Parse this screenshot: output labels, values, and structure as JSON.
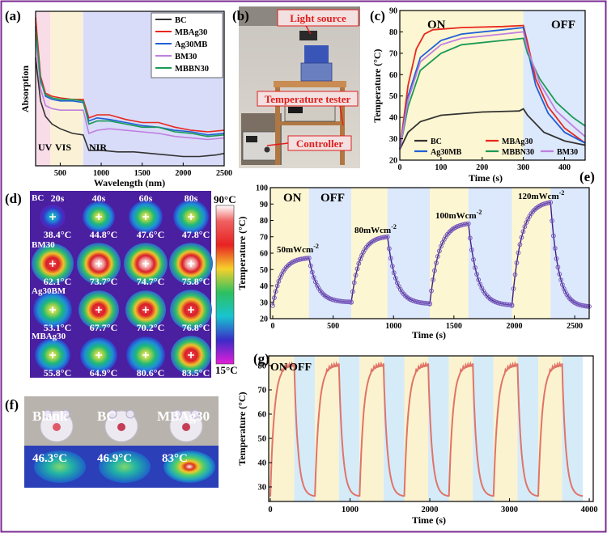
{
  "colors": {
    "frame": "#7a2a92",
    "bc": "#333333",
    "mbag": "#e8281e",
    "ag30mb": "#1f5fd6",
    "mbbn": "#1a9a55",
    "bm30": "#bf7fe0",
    "on_band": "#fdf6d2",
    "off_band": "#dce8fb",
    "uv_band": "#f8dce8",
    "vis_band": "#fbf1d6",
    "nir_band": "#d8dcf8",
    "g_on": "#fbf3cf",
    "g_off": "#d5ebf8",
    "g_line": "#e07468",
    "e_line": "#3d1e82",
    "e_marker": "#7a5bbf"
  },
  "chart_data": [
    {
      "panel": "(a)",
      "type": "line",
      "xlabel": "Wavelength (nm)",
      "ylabel": "Absorption",
      "xlim": [
        200,
        2500
      ],
      "ylim": [
        0,
        1
      ],
      "xticks": [
        500,
        1000,
        1500,
        2000,
        2500
      ],
      "regions": [
        {
          "label": "UV",
          "from": 200,
          "to": 380
        },
        {
          "label": "VIS",
          "from": 380,
          "to": 780
        },
        {
          "label": "NIR",
          "from": 780,
          "to": 2500
        }
      ],
      "series": [
        {
          "name": "BC",
          "points": [
            [
              200,
              0.7
            ],
            [
              260,
              0.42
            ],
            [
              320,
              0.32
            ],
            [
              400,
              0.27
            ],
            [
              500,
              0.24
            ],
            [
              650,
              0.21
            ],
            [
              780,
              0.2
            ],
            [
              850,
              0.1
            ],
            [
              1000,
              0.1
            ],
            [
              1200,
              0.09
            ],
            [
              1400,
              0.09
            ],
            [
              1600,
              0.08
            ],
            [
              1800,
              0.07
            ],
            [
              2000,
              0.06
            ],
            [
              2200,
              0.06
            ],
            [
              2400,
              0.07
            ],
            [
              2500,
              0.08
            ]
          ]
        },
        {
          "name": "MBAg30",
          "points": [
            [
              200,
              0.96
            ],
            [
              260,
              0.58
            ],
            [
              320,
              0.47
            ],
            [
              400,
              0.45
            ],
            [
              500,
              0.44
            ],
            [
              650,
              0.43
            ],
            [
              780,
              0.43
            ],
            [
              850,
              0.31
            ],
            [
              950,
              0.33
            ],
            [
              1100,
              0.33
            ],
            [
              1300,
              0.3
            ],
            [
              1500,
              0.28
            ],
            [
              1700,
              0.28
            ],
            [
              1900,
              0.25
            ],
            [
              2100,
              0.23
            ],
            [
              2300,
              0.22
            ],
            [
              2500,
              0.23
            ]
          ]
        },
        {
          "name": "Ag30MB",
          "points": [
            [
              200,
              0.88
            ],
            [
              260,
              0.56
            ],
            [
              320,
              0.45
            ],
            [
              400,
              0.43
            ],
            [
              500,
              0.42
            ],
            [
              650,
              0.42
            ],
            [
              780,
              0.41
            ],
            [
              850,
              0.29
            ],
            [
              950,
              0.31
            ],
            [
              1100,
              0.3
            ],
            [
              1300,
              0.28
            ],
            [
              1500,
              0.26
            ],
            [
              1700,
              0.25
            ],
            [
              1900,
              0.23
            ],
            [
              2100,
              0.22
            ],
            [
              2300,
              0.2
            ],
            [
              2500,
              0.21
            ]
          ]
        },
        {
          "name": "BM30",
          "points": [
            [
              200,
              0.85
            ],
            [
              260,
              0.5
            ],
            [
              320,
              0.39
            ],
            [
              400,
              0.37
            ],
            [
              500,
              0.36
            ],
            [
              650,
              0.36
            ],
            [
              780,
              0.36
            ],
            [
              850,
              0.21
            ],
            [
              950,
              0.23
            ],
            [
              1100,
              0.24
            ],
            [
              1300,
              0.23
            ],
            [
              1500,
              0.22
            ],
            [
              1700,
              0.21
            ],
            [
              1900,
              0.19
            ],
            [
              2100,
              0.18
            ],
            [
              2300,
              0.17
            ],
            [
              2500,
              0.18
            ]
          ]
        },
        {
          "name": "MBBN30",
          "points": [
            [
              200,
              0.9
            ],
            [
              260,
              0.55
            ],
            [
              320,
              0.46
            ],
            [
              400,
              0.44
            ],
            [
              500,
              0.43
            ],
            [
              650,
              0.43
            ],
            [
              780,
              0.42
            ],
            [
              850,
              0.27
            ],
            [
              950,
              0.29
            ],
            [
              1100,
              0.29
            ],
            [
              1300,
              0.27
            ],
            [
              1500,
              0.25
            ],
            [
              1700,
              0.25
            ],
            [
              1900,
              0.22
            ],
            [
              2100,
              0.21
            ],
            [
              2300,
              0.19
            ],
            [
              2500,
              0.2
            ]
          ]
        }
      ]
    },
    {
      "panel": "(c)",
      "type": "line",
      "xlabel": "Time (s)",
      "ylabel": "Temperature (°C)",
      "xlim": [
        0,
        450
      ],
      "ylim": [
        20,
        90
      ],
      "xticks": [
        0,
        100,
        200,
        300,
        400
      ],
      "yticks": [
        20,
        30,
        40,
        50,
        60,
        70,
        80,
        90
      ],
      "on_label": "ON",
      "off_label": "OFF",
      "on_range": [
        0,
        300
      ],
      "series": [
        {
          "name": "BC",
          "points": [
            [
              0,
              25
            ],
            [
              20,
              33
            ],
            [
              50,
              38
            ],
            [
              100,
              41
            ],
            [
              200,
              42.5
            ],
            [
              290,
              43
            ],
            [
              300,
              44
            ],
            [
              310,
              41
            ],
            [
              350,
              33
            ],
            [
              400,
              29
            ],
            [
              450,
              27
            ]
          ]
        },
        {
          "name": "MBAg30",
          "points": [
            [
              0,
              25
            ],
            [
              20,
              55
            ],
            [
              40,
              72
            ],
            [
              60,
              79
            ],
            [
              80,
              81
            ],
            [
              150,
              82
            ],
            [
              250,
              82.5
            ],
            [
              300,
              83
            ],
            [
              310,
              75
            ],
            [
              330,
              58
            ],
            [
              360,
              45
            ],
            [
              400,
              35
            ],
            [
              450,
              28
            ]
          ]
        },
        {
          "name": "Ag30MB",
          "points": [
            [
              0,
              25
            ],
            [
              20,
              50
            ],
            [
              50,
              68
            ],
            [
              100,
              76
            ],
            [
              150,
              79
            ],
            [
              250,
              81
            ],
            [
              300,
              82
            ],
            [
              310,
              72
            ],
            [
              330,
              55
            ],
            [
              360,
              42
            ],
            [
              400,
              33
            ],
            [
              450,
              28
            ]
          ]
        },
        {
          "name": "MBBN30",
          "points": [
            [
              0,
              25
            ],
            [
              20,
              45
            ],
            [
              50,
              62
            ],
            [
              100,
              70
            ],
            [
              150,
              74
            ],
            [
              250,
              76
            ],
            [
              300,
              77
            ],
            [
              310,
              70
            ],
            [
              340,
              58
            ],
            [
              380,
              47
            ],
            [
              420,
              40
            ],
            [
              450,
              36
            ]
          ]
        },
        {
          "name": "BM30",
          "points": [
            [
              0,
              25
            ],
            [
              20,
              48
            ],
            [
              50,
              66
            ],
            [
              100,
              74
            ],
            [
              150,
              77
            ],
            [
              250,
              79
            ],
            [
              300,
              80
            ],
            [
              310,
              72
            ],
            [
              340,
              56
            ],
            [
              380,
              43
            ],
            [
              420,
              36
            ],
            [
              450,
              31
            ]
          ]
        }
      ]
    },
    {
      "panel": "(e)",
      "type": "scatter",
      "xlabel": "Time (s)",
      "ylabel": "Temperature (°C)",
      "xlim": [
        -20,
        2620
      ],
      "ylim": [
        20,
        100
      ],
      "xticks": [
        0,
        500,
        1000,
        1500,
        2000,
        2500
      ],
      "yticks": [
        20,
        30,
        40,
        50,
        60,
        70,
        80,
        90,
        100
      ],
      "on_label": "ON",
      "off_label": "OFF",
      "cycles": [
        {
          "power": "50mWcm",
          "on": [
            0,
            300
          ],
          "off": [
            300,
            650
          ],
          "start": 28,
          "peak": 57,
          "end": 30
        },
        {
          "power": "80mWcm",
          "on": [
            650,
            950
          ],
          "off": [
            950,
            1300
          ],
          "start": 30,
          "peak": 70,
          "end": 29
        },
        {
          "power": "100mWcm",
          "on": [
            1300,
            1620
          ],
          "off": [
            1620,
            1980
          ],
          "start": 29,
          "peak": 78,
          "end": 28
        },
        {
          "power": "120mWcm",
          "on": [
            1980,
            2300
          ],
          "off": [
            2300,
            2620
          ],
          "start": 28,
          "peak": 91,
          "end": 27
        }
      ],
      "power_exponent": "-2"
    },
    {
      "panel": "(g)",
      "type": "line",
      "xlabel": "Time (s)",
      "ylabel": "Temperature (°C)",
      "xlim": [
        -20,
        4050
      ],
      "ylim": [
        24,
        84
      ],
      "xticks": [
        0,
        1000,
        2000,
        3000,
        4000
      ],
      "yticks": [
        30,
        40,
        50,
        60,
        70,
        80
      ],
      "on_label": "ON",
      "off_label": "OFF",
      "cycle_period": 560,
      "on_duration": 300,
      "cycles": 7,
      "low": 26,
      "high": 80
    }
  ],
  "panel_a": {
    "label": "(a)",
    "legend": [
      "BC",
      "MBAg30",
      "Ag30MB",
      "BM30",
      "MBBN30"
    ],
    "region_labels": [
      "UV",
      "VIS",
      "NIR"
    ],
    "xlabel": "Wavelength (nm)",
    "ylabel": "Absorption",
    "ticks": [
      "500",
      "1000",
      "1500",
      "2000",
      "2500"
    ]
  },
  "panel_b": {
    "label": "(b)",
    "light_source": "Light source",
    "temperature_tester": "Temperature tester",
    "controller": "Controller"
  },
  "panel_c": {
    "label": "(c)",
    "legend": [
      "BC",
      "MBAg30",
      "Ag30MB",
      "MBBN30",
      "BM30"
    ]
  },
  "panel_d": {
    "label": "(d)",
    "times": [
      "20s",
      "40s",
      "60s",
      "80s"
    ],
    "rows": [
      {
        "name": "BC",
        "temps": [
          "38.4°C",
          "44.8°C",
          "47.6°C",
          "47.8°C"
        ]
      },
      {
        "name": "BM30",
        "temps": [
          "62.1°C",
          "73.7°C",
          "74.7°C",
          "75.8°C"
        ]
      },
      {
        "name": "Ag30BM",
        "temps": [
          "53.1°C",
          "67.7°C",
          "70.2°C",
          "76.8°C"
        ]
      },
      {
        "name": "MBAg30",
        "temps": [
          "55.8°C",
          "64.9°C",
          "80.6°C",
          "83.5°C"
        ]
      }
    ],
    "scale_max": "90°C",
    "scale_min": "15°C"
  },
  "panel_f": {
    "label": "(f)",
    "samples": [
      "Blank",
      "BC",
      "MBAg30"
    ],
    "temps": [
      "46.3°C",
      "46.9°C",
      "83°C"
    ]
  },
  "panel_g": {
    "label": "(g)"
  }
}
